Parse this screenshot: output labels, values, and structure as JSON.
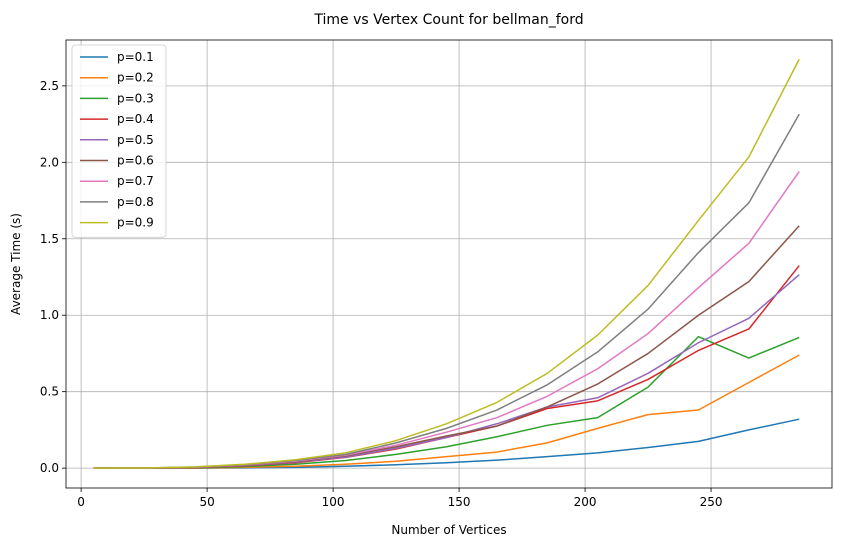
{
  "chart_data": {
    "type": "line",
    "title": "Time vs Vertex Count for bellman_ford",
    "xlabel": "Number of Vertices",
    "ylabel": "Average Time (s)",
    "xlim": [
      -6,
      298
    ],
    "ylim": [
      -0.13,
      2.8
    ],
    "xticks": [
      0,
      50,
      100,
      150,
      200,
      250
    ],
    "xtick_labels": [
      "0",
      "50",
      "100",
      "150",
      "200",
      "250"
    ],
    "yticks": [
      0.0,
      0.5,
      1.0,
      1.5,
      2.0,
      2.5
    ],
    "ytick_labels": [
      "0.0",
      "0.5",
      "1.0",
      "1.5",
      "2.0",
      "2.5"
    ],
    "grid": true,
    "legend_position": "top-left",
    "x": [
      5,
      25,
      45,
      65,
      85,
      105,
      125,
      145,
      165,
      185,
      205,
      225,
      245,
      265,
      285
    ],
    "series": [
      {
        "name": "p=0.1",
        "color": "#1f77b4",
        "values": [
          0.0,
          0.0,
          0.0,
          0.002,
          0.005,
          0.012,
          0.022,
          0.035,
          0.052,
          0.075,
          0.1,
          0.135,
          0.175,
          0.25,
          0.32
        ]
      },
      {
        "name": "p=0.2",
        "color": "#ff7f0e",
        "values": [
          0.0,
          0.0,
          0.0,
          0.005,
          0.012,
          0.025,
          0.045,
          0.075,
          0.105,
          0.165,
          0.26,
          0.35,
          0.38,
          0.56,
          0.74
        ]
      },
      {
        "name": "p=0.3",
        "color": "#2ca02c",
        "values": [
          0.0,
          0.0,
          0.002,
          0.01,
          0.025,
          0.05,
          0.09,
          0.14,
          0.205,
          0.28,
          0.33,
          0.53,
          0.86,
          0.72,
          0.855
        ]
      },
      {
        "name": "p=0.4",
        "color": "#d62728",
        "values": [
          0.0,
          0.0,
          0.003,
          0.015,
          0.035,
          0.07,
          0.125,
          0.2,
          0.275,
          0.39,
          0.44,
          0.58,
          0.77,
          0.91,
          1.325
        ]
      },
      {
        "name": "p=0.5",
        "color": "#9467bd",
        "values": [
          0.0,
          0.0,
          0.004,
          0.016,
          0.038,
          0.072,
          0.13,
          0.2,
          0.29,
          0.4,
          0.46,
          0.62,
          0.82,
          0.98,
          1.265
        ]
      },
      {
        "name": "p=0.6",
        "color": "#8c564b",
        "values": [
          0.0,
          0.001,
          0.005,
          0.018,
          0.042,
          0.08,
          0.14,
          0.21,
          0.275,
          0.4,
          0.55,
          0.75,
          1.0,
          1.22,
          1.585
        ]
      },
      {
        "name": "p=0.7",
        "color": "#e377c2",
        "values": [
          0.0,
          0.001,
          0.006,
          0.02,
          0.046,
          0.085,
          0.15,
          0.235,
          0.33,
          0.47,
          0.65,
          0.88,
          1.18,
          1.47,
          1.94
        ]
      },
      {
        "name": "p=0.8",
        "color": "#7f7f7f",
        "values": [
          0.0,
          0.001,
          0.007,
          0.022,
          0.05,
          0.09,
          0.165,
          0.26,
          0.38,
          0.545,
          0.76,
          1.04,
          1.41,
          1.735,
          2.315
        ]
      },
      {
        "name": "p=0.9",
        "color": "#bcbd22",
        "values": [
          0.0,
          0.001,
          0.008,
          0.025,
          0.055,
          0.1,
          0.18,
          0.29,
          0.43,
          0.62,
          0.87,
          1.195,
          1.62,
          2.035,
          2.675
        ]
      }
    ]
  }
}
